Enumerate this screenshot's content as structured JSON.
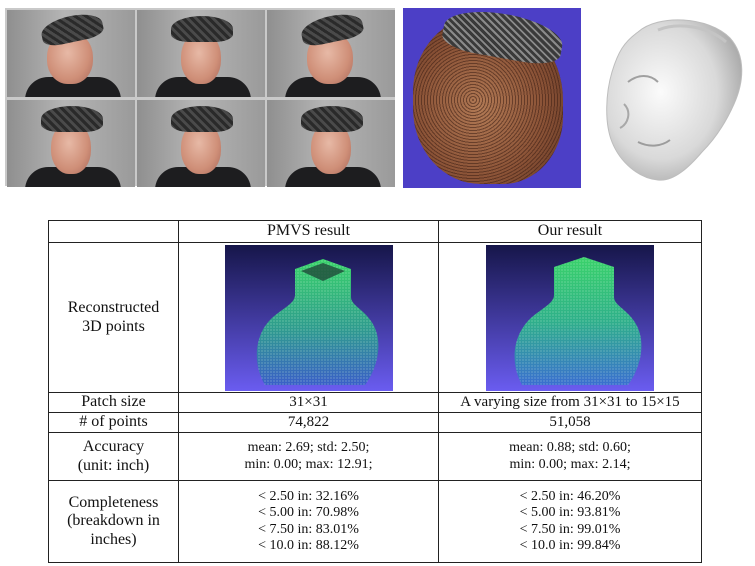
{
  "table": {
    "headers": [
      "",
      "PMVS result",
      "Our result"
    ],
    "rows": {
      "reconstructed": {
        "label_line1": "Reconstructed",
        "label_line2": "3D points"
      },
      "patch_size": {
        "label": "Patch size",
        "pmvs": "31×31",
        "ours": "A varying size from 31×31 to 15×15"
      },
      "num_points": {
        "label": "# of points",
        "pmvs": "74,822",
        "ours": "51,058"
      },
      "accuracy": {
        "label_line1": "Accuracy",
        "label_line2": "(unit: inch)",
        "pmvs": [
          "mean: 2.69; std: 2.50;",
          "min: 0.00; max: 12.91;"
        ],
        "ours": [
          "mean: 0.88; std: 0.60;",
          "min: 0.00; max: 2.14;"
        ]
      },
      "completeness": {
        "label_line1": "Completeness",
        "label_line2": "(breakdown in",
        "label_line3": "inches)",
        "pmvs": [
          "< 2.50 in: 32.16%",
          "< 5.00 in: 70.98%",
          "< 7.50 in: 83.01%",
          "< 10.0 in: 88.12%"
        ],
        "ours": [
          "< 2.50 in: 46.20%",
          "< 5.00 in: 93.81%",
          "< 7.50 in: 99.01%",
          "< 10.0 in: 99.84%"
        ]
      }
    }
  },
  "colors": {
    "pointcloud_bg": "#4c3fc6",
    "recon_bg_top": "#1a1a4a",
    "recon_bg_bottom": "#6a5cf0",
    "points_green": "#2fd16a",
    "points_blue": "#3a6fd0"
  }
}
